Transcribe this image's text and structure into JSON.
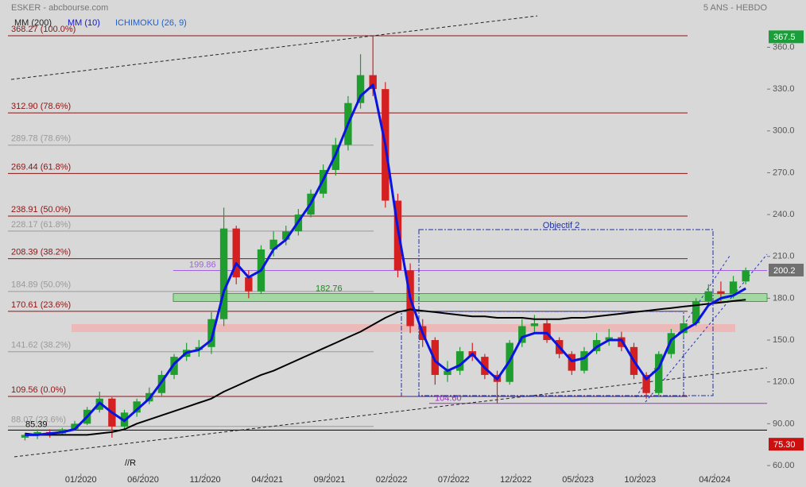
{
  "chart_data": {
    "type": "candlestick",
    "source": "ESKER - abcbourse.com",
    "period": "5 ANS - HEBDO",
    "x": [
      "08/2019",
      "09/2019",
      "10/2019",
      "11/2019",
      "12/2019",
      "01/2020",
      "02/2020",
      "03/2020",
      "04/2020",
      "05/2020",
      "06/2020",
      "07/2020",
      "08/2020",
      "09/2020",
      "10/2020",
      "11/2020",
      "12/2020",
      "01/2021",
      "02/2021",
      "03/2021",
      "04/2021",
      "05/2021",
      "06/2021",
      "07/2021",
      "08/2021",
      "09/2021",
      "10/2021",
      "11/2021",
      "12/2021",
      "01/2022",
      "02/2022",
      "03/2022",
      "04/2022",
      "05/2022",
      "06/2022",
      "07/2022",
      "08/2022",
      "09/2022",
      "10/2022",
      "11/2022",
      "12/2022",
      "01/2023",
      "02/2023",
      "03/2023",
      "04/2023",
      "05/2023",
      "06/2023",
      "07/2023",
      "08/2023",
      "09/2023",
      "10/2023",
      "11/2023",
      "12/2023",
      "01/2024",
      "02/2024",
      "03/2024",
      "04/2024",
      "05/2024",
      "06/2024"
    ],
    "open": [
      80,
      82,
      84,
      83,
      86,
      90,
      100,
      108,
      88,
      98,
      106,
      112,
      125,
      138,
      143,
      145,
      165,
      230,
      195,
      185,
      215,
      222,
      228,
      240,
      255,
      272,
      290,
      320,
      340,
      330,
      250,
      200,
      160,
      150,
      125,
      128,
      142,
      138,
      125,
      120,
      148,
      160,
      162,
      150,
      140,
      128,
      142,
      150,
      152,
      145,
      125,
      112,
      140,
      155,
      162,
      178,
      185,
      183,
      192
    ],
    "high": [
      83,
      86,
      86,
      87,
      92,
      102,
      113,
      109,
      100,
      108,
      116,
      128,
      140,
      148,
      150,
      170,
      245,
      232,
      200,
      218,
      228,
      232,
      244,
      258,
      276,
      295,
      325,
      355,
      368,
      335,
      255,
      205,
      165,
      152,
      135,
      145,
      148,
      140,
      128,
      150,
      165,
      168,
      165,
      152,
      142,
      145,
      155,
      158,
      156,
      148,
      127,
      142,
      158,
      166,
      180,
      190,
      192,
      196,
      202
    ],
    "low": [
      78,
      79,
      80,
      82,
      85,
      89,
      98,
      80,
      86,
      95,
      104,
      110,
      122,
      135,
      138,
      140,
      160,
      190,
      180,
      183,
      210,
      218,
      225,
      238,
      252,
      268,
      286,
      316,
      325,
      245,
      195,
      155,
      145,
      118,
      120,
      125,
      135,
      122,
      104.6,
      118,
      145,
      155,
      148,
      137,
      125,
      126,
      140,
      146,
      142,
      122,
      108,
      110,
      137,
      152,
      160,
      175,
      178,
      180,
      190
    ],
    "close": [
      82,
      84,
      83,
      86,
      90,
      100,
      108,
      88,
      98,
      106,
      112,
      125,
      138,
      143,
      145,
      165,
      230,
      195,
      185,
      215,
      222,
      228,
      240,
      255,
      272,
      290,
      320,
      340,
      330,
      250,
      200,
      160,
      150,
      125,
      128,
      142,
      138,
      125,
      120,
      148,
      160,
      162,
      150,
      140,
      128,
      142,
      150,
      152,
      145,
      125,
      112,
      140,
      155,
      162,
      178,
      185,
      183,
      192,
      200
    ],
    "up_color": "#1f9d2f",
    "down_color": "#d42020",
    "series": [
      {
        "name": "MM (200)",
        "color": "#000000",
        "values": [
          83,
          82,
          82,
          82,
          82,
          82,
          83,
          84,
          86,
          90,
          93,
          96,
          99,
          102,
          105,
          108,
          113,
          117,
          121,
          125,
          128,
          132,
          136,
          140,
          144,
          148,
          152,
          156,
          161,
          166,
          170,
          172,
          171,
          170,
          169,
          168,
          167,
          167,
          166,
          166,
          166,
          165,
          165,
          165,
          166,
          166,
          167,
          168,
          169,
          170,
          171,
          172,
          173,
          174,
          175,
          176,
          177,
          178,
          179
        ]
      },
      {
        "name": "MM (10)",
        "color": "#0a14e0",
        "values": [
          82,
          82,
          83,
          84,
          86,
          95,
          105,
          98,
          92,
          100,
          108,
          120,
          133,
          141,
          143,
          150,
          185,
          205,
          195,
          200,
          215,
          222,
          235,
          248,
          265,
          283,
          305,
          325,
          333,
          290,
          230,
          180,
          155,
          135,
          128,
          132,
          140,
          130,
          122,
          135,
          152,
          155,
          155,
          145,
          135,
          137,
          145,
          150,
          150,
          135,
          122,
          130,
          150,
          157,
          162,
          175,
          180,
          182,
          187
        ]
      }
    ],
    "indicator": "ICHIMOKU (26, 9)",
    "indicator_color": "#2060d0",
    "xlim": [
      "07/2019",
      "07/2024"
    ],
    "xticks": [
      "01/2020",
      "06/2020",
      "11/2020",
      "04/2021",
      "09/2021",
      "02/2022",
      "07/2022",
      "12/2022",
      "05/2023",
      "10/2023",
      "04/2024"
    ],
    "ylim": [
      54.3,
      393.9
    ],
    "yticks": [
      {
        "value": 60,
        "label": "60.00"
      },
      {
        "value": 90,
        "label": "90.00"
      },
      {
        "value": 120,
        "label": "120.0"
      },
      {
        "value": 150,
        "label": "150.0"
      },
      {
        "value": 180,
        "label": "180.0"
      },
      {
        "value": 210,
        "label": "210.0"
      },
      {
        "value": 240,
        "label": "240.0"
      },
      {
        "value": 270,
        "label": "270.0"
      },
      {
        "value": 300,
        "label": "300.0"
      },
      {
        "value": 330,
        "label": "330.0"
      },
      {
        "value": 360,
        "label": "360.0"
      }
    ],
    "fib_levels": {
      "color": "#8b1414",
      "levels": [
        {
          "value": 368.27,
          "label": "368.27  (100.0%)"
        },
        {
          "value": 312.9,
          "label": "312.90  (78.6%)"
        },
        {
          "value": 269.44,
          "label": "269.44  (61.8%)"
        },
        {
          "value": 238.91,
          "label": "238.91  (50.0%)"
        },
        {
          "value": 208.39,
          "label": "208.39  (38.2%)"
        },
        {
          "value": 170.61,
          "label": "170.61  (23.6%)"
        },
        {
          "value": 109.56,
          "label": "109.56  (0.0%)"
        }
      ]
    },
    "fib_levels_2": {
      "color": "#9a9a9a",
      "levels": [
        {
          "value": 289.78,
          "label": "289.78  (78.6%)"
        },
        {
          "value": 228.17,
          "label": "228.17  (61.8%)"
        },
        {
          "value": 184.89,
          "label": "184.89  (50.0%)"
        },
        {
          "value": 141.62,
          "label": "141.62  (38.2%)"
        },
        {
          "value": 88.07,
          "label": "88.07  (23.6%)"
        }
      ]
    },
    "resistance": {
      "value": 199.86,
      "color": "#a060e0"
    },
    "support_zone": {
      "value": 182.76,
      "color": "#1a8a1a"
    },
    "low_level": {
      "value": 104.6,
      "label": "104.60",
      "color": "#a030c0"
    },
    "base_level": {
      "value": 85.39,
      "color": "#000000"
    },
    "target": "Objectif 2",
    "note": "//R",
    "price_tags": [
      {
        "value": 367.5,
        "color": "#1a9e3a"
      },
      {
        "value": 200.2,
        "color": "#707070"
      },
      {
        "value": 75.3,
        "label": "75.30",
        "color": "#cc1010"
      }
    ]
  }
}
